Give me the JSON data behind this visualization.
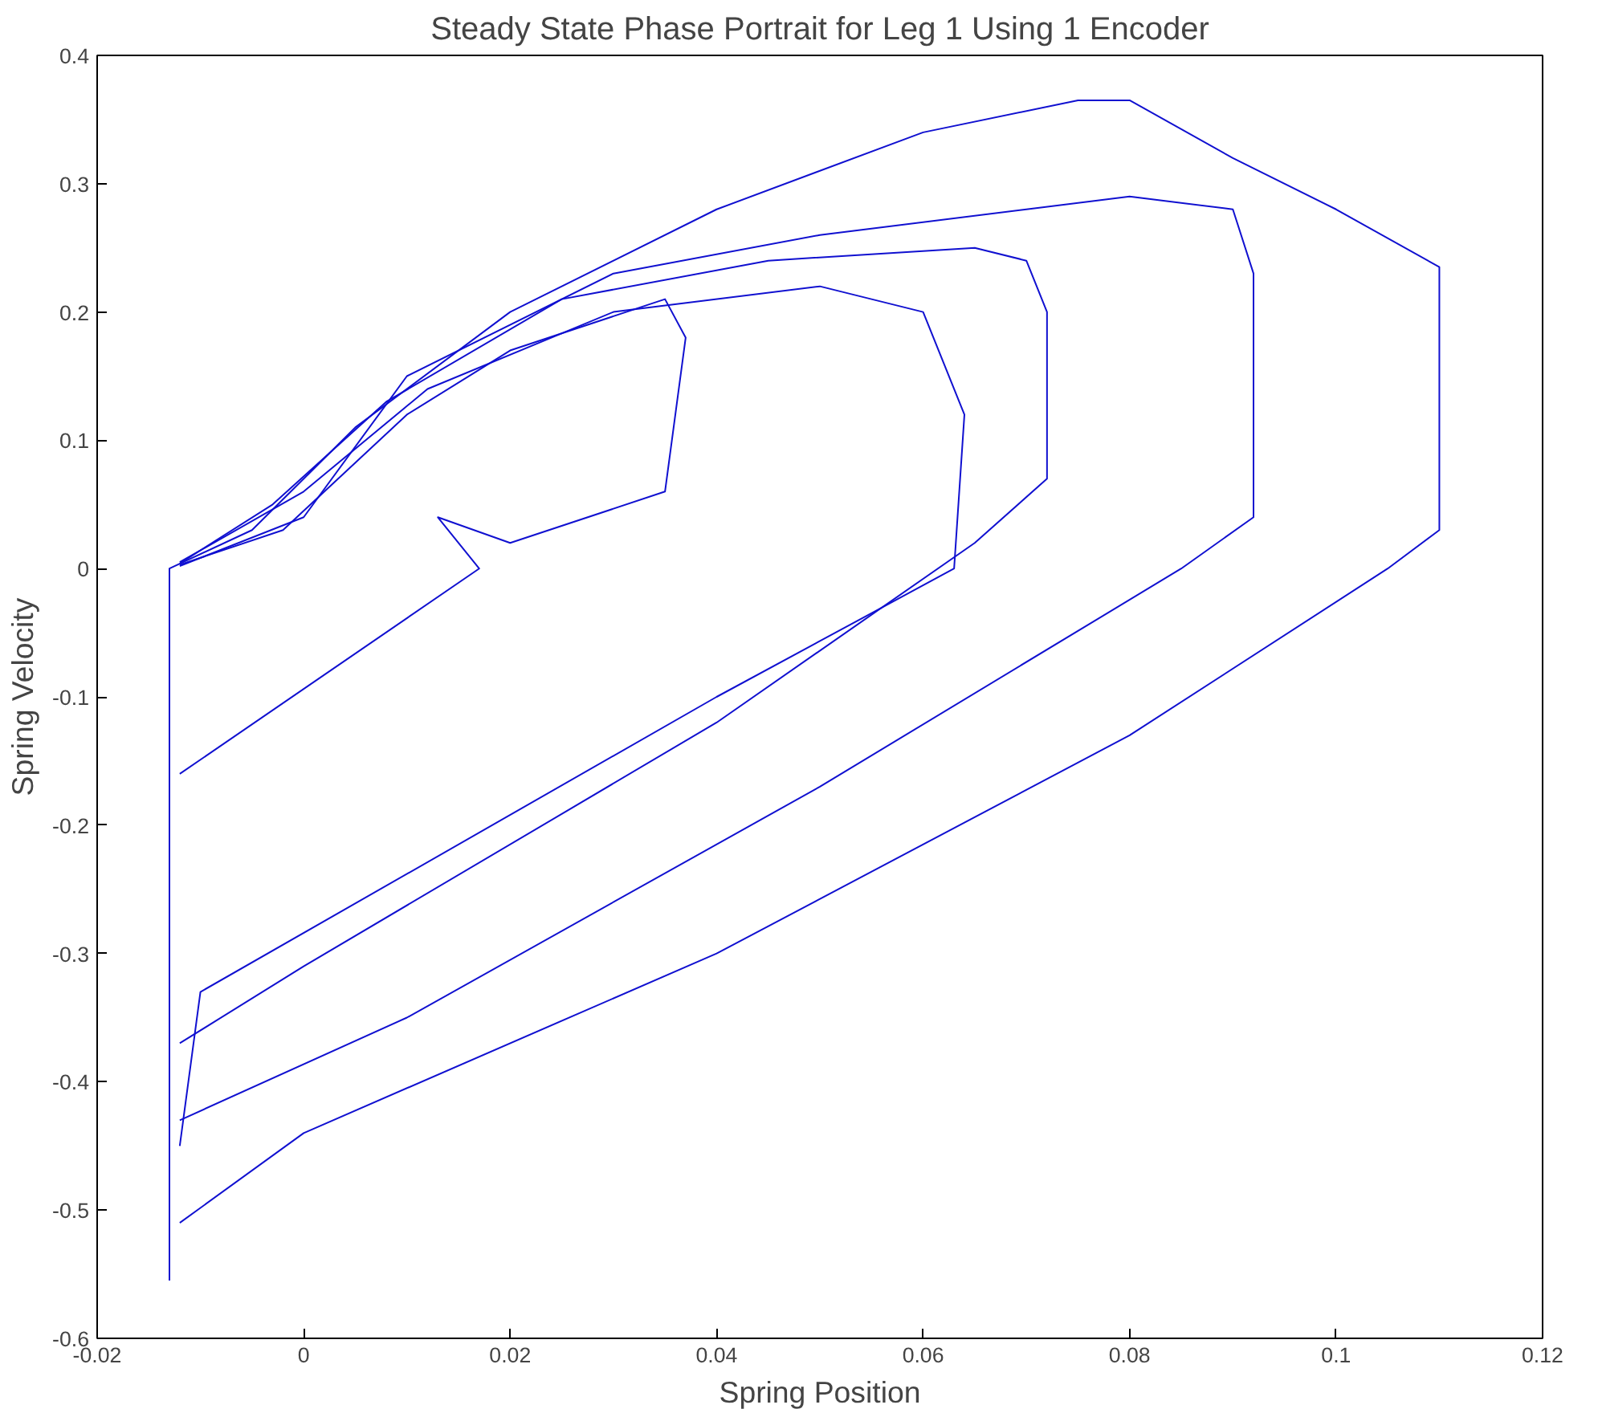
{
  "chart_data": {
    "type": "line",
    "title": "Steady State Phase Portrait for Leg 1 Using 1 Encoder",
    "xlabel": "Spring Position",
    "ylabel": "Spring Velocity",
    "xlim": [
      -0.02,
      0.12
    ],
    "xticks": [
      -0.02,
      0,
      0.02,
      0.04,
      0.06,
      0.08,
      0.1,
      0.12
    ],
    "ylim": [
      -0.6,
      0.4
    ],
    "yticks": [
      -0.6,
      -0.5,
      -0.4,
      -0.3,
      -0.2,
      -0.1,
      0,
      0.1,
      0.2,
      0.3,
      0.4
    ],
    "grid": false,
    "line_style": "solid",
    "marker": "none",
    "series": [
      {
        "color": "#1010d0",
        "x": [
          -0.013,
          -0.013,
          -0.005,
          0.005,
          0.02,
          0.04,
          0.06,
          0.075,
          0.08,
          0.09,
          0.1,
          0.11,
          0.11,
          0.105,
          0.08,
          0.04,
          0.0,
          -0.012
        ],
        "values": [
          -0.555,
          0.0,
          0.03,
          0.11,
          0.2,
          0.28,
          0.34,
          0.365,
          0.365,
          0.32,
          0.28,
          0.235,
          0.03,
          0.0,
          -0.13,
          -0.3,
          -0.44,
          -0.51
        ]
      },
      {
        "color": "#1010d0",
        "x": [
          -0.012,
          0.0,
          0.01,
          0.03,
          0.05,
          0.07,
          0.08,
          0.09,
          0.092,
          0.092,
          0.085,
          0.05,
          0.01,
          -0.012
        ],
        "values": [
          0.002,
          0.04,
          0.15,
          0.23,
          0.26,
          0.28,
          0.29,
          0.28,
          0.23,
          0.04,
          0.0,
          -0.17,
          -0.35,
          -0.43
        ]
      },
      {
        "color": "#1010d0",
        "x": [
          -0.012,
          -0.003,
          0.008,
          0.025,
          0.045,
          0.065,
          0.07,
          0.072,
          0.072,
          0.065,
          0.04,
          0.0,
          -0.012
        ],
        "values": [
          0.004,
          0.05,
          0.13,
          0.21,
          0.24,
          0.25,
          0.24,
          0.2,
          0.07,
          0.02,
          -0.12,
          -0.31,
          -0.37
        ]
      },
      {
        "color": "#1010d0",
        "x": [
          -0.012,
          -0.002,
          0.01,
          0.02,
          0.035,
          0.037,
          0.035,
          0.02,
          0.013,
          0.017,
          -0.012
        ],
        "values": [
          0.003,
          0.03,
          0.12,
          0.17,
          0.21,
          0.18,
          0.06,
          0.02,
          0.04,
          0.0,
          -0.16
        ]
      },
      {
        "color": "#1010d0",
        "x": [
          -0.012,
          0.0,
          0.012,
          0.03,
          0.05,
          0.06,
          0.064,
          0.063,
          0.04,
          -0.01,
          -0.012
        ],
        "values": [
          0.005,
          0.06,
          0.14,
          0.2,
          0.22,
          0.2,
          0.12,
          0.0,
          -0.1,
          -0.33,
          -0.45
        ]
      }
    ]
  }
}
